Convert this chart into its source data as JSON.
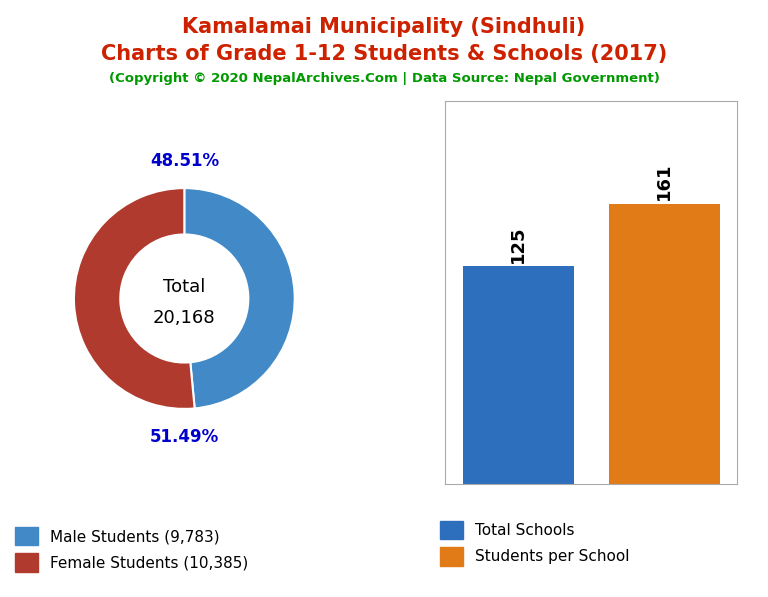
{
  "title_line1": "Kamalamai Municipality (Sindhuli)",
  "title_line2": "Charts of Grade 1-12 Students & Schools (2017)",
  "subtitle": "(Copyright © 2020 NepalArchives.Com | Data Source: Nepal Government)",
  "title_color": "#cc2200",
  "subtitle_color": "#009900",
  "male_students": 9783,
  "female_students": 10385,
  "total_students": 20168,
  "male_pct": "48.51%",
  "female_pct": "51.49%",
  "male_color": "#4189c7",
  "female_color": "#b03a2e",
  "donut_label_color": "#0000cc",
  "total_schools": 125,
  "students_per_school": 161,
  "bar_blue": "#2e6fbd",
  "bar_orange": "#e07b18",
  "legend_label_schools": "Total Schools",
  "legend_label_sps": "Students per School",
  "background_color": "#ffffff"
}
